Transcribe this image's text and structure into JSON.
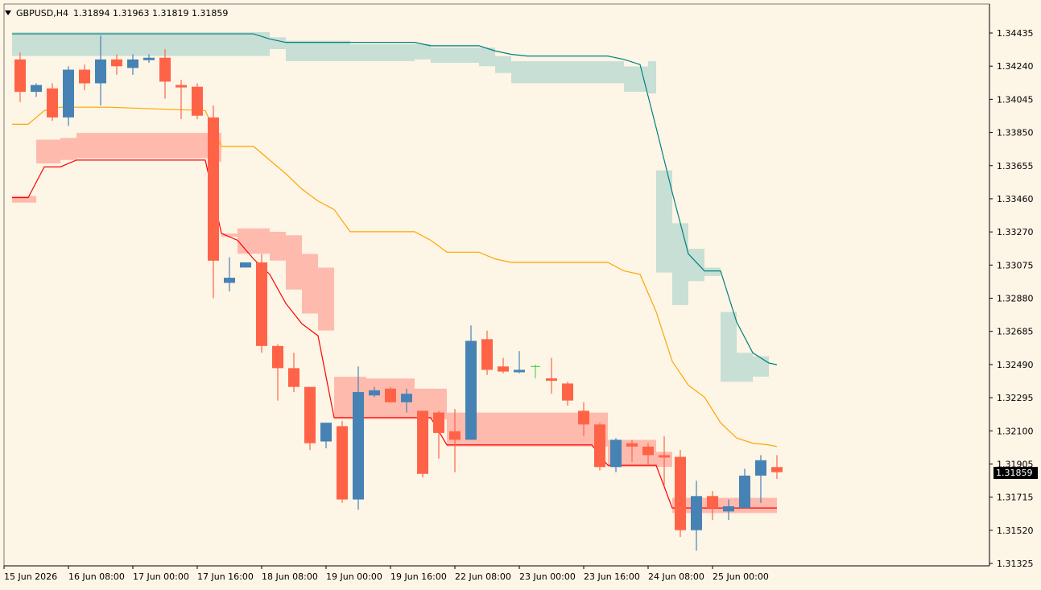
{
  "header": {
    "symbol": "GBPUSD,H4",
    "ohlc": "1.31894 1.31963 1.31819 1.31859"
  },
  "current_price_label": "1.31859",
  "colors": {
    "background": "#fdf5e6",
    "bull": "#4682b4",
    "bear": "#ff6347",
    "upper_cloud": "#c4ddd3",
    "lower_cloud": "#ffb6ab",
    "upper_line": "#008080",
    "lower_line": "#ff0000",
    "mid_line": "#ffa500"
  },
  "chart_data": {
    "type": "candlestick",
    "y_ticks": [
      "1.34435",
      "1.34240",
      "1.34045",
      "1.33850",
      "1.33655",
      "1.33460",
      "1.33270",
      "1.33075",
      "1.32880",
      "1.32685",
      "1.32490",
      "1.32295",
      "1.32100",
      "1.31905",
      "1.31715",
      "1.31520",
      "1.31325"
    ],
    "x_ticks": [
      "15 Jun 2026",
      "16 Jun 08:00",
      "17 Jun 00:00",
      "17 Jun 16:00",
      "18 Jun 08:00",
      "19 Jun 00:00",
      "19 Jun 16:00",
      "22 Jun 08:00",
      "23 Jun 00:00",
      "23 Jun 16:00",
      "24 Jun 08:00",
      "25 Jun 00:00"
    ],
    "ylim": [
      1.3128,
      1.3459
    ],
    "candles": [
      [
        1.3428,
        1.3432,
        1.3403,
        1.3409
      ],
      [
        1.3409,
        1.3414,
        1.3406,
        1.3413
      ],
      [
        1.3411,
        1.3414,
        1.3392,
        1.3394
      ],
      [
        1.3394,
        1.3424,
        1.3389,
        1.3422
      ],
      [
        1.3422,
        1.3425,
        1.341,
        1.3414
      ],
      [
        1.3414,
        1.3442,
        1.3401,
        1.3428
      ],
      [
        1.3428,
        1.3431,
        1.3419,
        1.3424
      ],
      [
        1.3423,
        1.3431,
        1.3419,
        1.3428
      ],
      [
        1.3428,
        1.3431,
        1.3426,
        1.3429
      ],
      [
        1.3429,
        1.3434,
        1.3405,
        1.3415
      ],
      [
        1.3413,
        1.3416,
        1.3393,
        1.3412
      ],
      [
        1.3412,
        1.3414,
        1.3393,
        1.3395
      ],
      [
        1.3394,
        1.3401,
        1.3288,
        1.331
      ],
      [
        1.3297,
        1.3312,
        1.3292,
        1.33
      ],
      [
        1.3306,
        1.3308,
        1.3306,
        1.3309
      ],
      [
        1.3309,
        1.3314,
        1.3256,
        1.326
      ],
      [
        1.326,
        1.3261,
        1.3228,
        1.3247
      ],
      [
        1.3247,
        1.3256,
        1.3233,
        1.3236
      ],
      [
        1.3236,
        1.3234,
        1.3199,
        1.3203
      ],
      [
        1.3204,
        1.3214,
        1.32,
        1.3215
      ],
      [
        1.3213,
        1.3216,
        1.3168,
        1.317
      ],
      [
        1.317,
        1.3248,
        1.3164,
        1.3233
      ],
      [
        1.3231,
        1.3236,
        1.323,
        1.3234
      ],
      [
        1.3235,
        1.3236,
        1.3227,
        1.3227
      ],
      [
        1.3227,
        1.3235,
        1.3221,
        1.3232
      ],
      [
        1.3222,
        1.3222,
        1.3183,
        1.3185
      ],
      [
        1.3221,
        1.3222,
        1.3194,
        1.3209
      ],
      [
        1.321,
        1.3223,
        1.3186,
        1.3205
      ],
      [
        1.3205,
        1.3272,
        1.3205,
        1.3263
      ],
      [
        1.3264,
        1.3269,
        1.3243,
        1.3246
      ],
      [
        1.3248,
        1.3253,
        1.3244,
        1.3245
      ],
      [
        1.3245,
        1.3257,
        1.3244,
        1.3246
      ],
      [
        1.3248,
        1.3249,
        1.3241,
        1.3242
      ],
      [
        1.3241,
        1.3253,
        1.3232,
        1.324
      ],
      [
        1.3238,
        1.3239,
        1.3225,
        1.3228
      ],
      [
        1.3222,
        1.3227,
        1.3207,
        1.3214
      ],
      [
        1.3214,
        1.3215,
        1.3187,
        1.3189
      ],
      [
        1.3189,
        1.3206,
        1.3186,
        1.3205
      ],
      [
        1.3203,
        1.3205,
        1.3192,
        1.3201
      ],
      [
        1.3201,
        1.3203,
        1.319,
        1.3196
      ],
      [
        1.3196,
        1.3207,
        1.3178,
        1.3195
      ],
      [
        1.3195,
        1.3199,
        1.3148,
        1.3152
      ],
      [
        1.3152,
        1.3181,
        1.314,
        1.3172
      ],
      [
        1.3172,
        1.3175,
        1.3158,
        1.3165
      ],
      [
        1.3163,
        1.317,
        1.3158,
        1.3166
      ],
      [
        1.3165,
        1.3188,
        1.3165,
        1.3184
      ],
      [
        1.3184,
        1.3196,
        1.3168,
        1.3193
      ],
      [
        1.3189,
        1.3196,
        1.3182,
        1.3186
      ]
    ],
    "upper_line_points": [
      [
        0,
        1.3443
      ],
      [
        15,
        1.3443
      ],
      [
        16,
        1.344
      ],
      [
        17,
        1.3438
      ],
      [
        25,
        1.3438
      ],
      [
        26,
        1.3436
      ],
      [
        29,
        1.3436
      ],
      [
        30,
        1.3433
      ],
      [
        31,
        1.3431
      ],
      [
        32,
        1.343
      ],
      [
        37,
        1.343
      ],
      [
        38,
        1.3428
      ],
      [
        39,
        1.3425
      ],
      [
        40,
        1.3388
      ],
      [
        41,
        1.335
      ],
      [
        42,
        1.3314
      ],
      [
        43,
        1.3304
      ],
      [
        44,
        1.3304
      ],
      [
        45,
        1.3274
      ],
      [
        46,
        1.3256
      ],
      [
        47,
        1.325
      ],
      [
        47.5,
        1.3249
      ]
    ],
    "upper_cloud": [
      [
        0,
        1.3443,
        1.3431
      ],
      [
        12,
        1.3443,
        1.3431
      ],
      [
        16,
        1.344,
        1.3435
      ],
      [
        17,
        1.3438,
        1.3428
      ],
      [
        21,
        1.3436,
        1.3428
      ],
      [
        25,
        1.3436,
        1.3429
      ],
      [
        26,
        1.3434,
        1.3427
      ],
      [
        29,
        1.3434,
        1.3425
      ],
      [
        30,
        1.3429,
        1.3421
      ],
      [
        31,
        1.3426,
        1.3415
      ],
      [
        38,
        1.3423,
        1.341
      ],
      [
        39.5,
        1.3426,
        1.3409
      ],
      [
        40,
        1.3362,
        1.3304
      ],
      [
        41,
        1.3331,
        1.3285
      ],
      [
        42,
        1.3316,
        1.3299
      ],
      [
        43,
        1.3305,
        1.3302
      ],
      [
        44,
        1.3304,
        1.3304
      ],
      [
        44,
        1.3279,
        1.324
      ],
      [
        45,
        1.3255,
        1.324
      ],
      [
        46,
        1.3253,
        1.3243
      ],
      [
        47,
        1.3252,
        1.3241
      ]
    ],
    "lower_line_points": [
      [
        0,
        1.3347
      ],
      [
        1,
        1.3347
      ],
      [
        2,
        1.3365
      ],
      [
        3,
        1.3365
      ],
      [
        4,
        1.3369
      ],
      [
        12,
        1.3369
      ],
      [
        13,
        1.3326
      ],
      [
        14,
        1.3322
      ],
      [
        15,
        1.3311
      ],
      [
        16,
        1.3302
      ],
      [
        17,
        1.3285
      ],
      [
        18,
        1.3273
      ],
      [
        19,
        1.3266
      ],
      [
        20,
        1.3218
      ],
      [
        22,
        1.3218
      ],
      [
        26,
        1.3218
      ],
      [
        27,
        1.3202
      ],
      [
        36,
        1.3202
      ],
      [
        37,
        1.319
      ],
      [
        40,
        1.319
      ],
      [
        41,
        1.3165
      ],
      [
        47.5,
        1.3165
      ]
    ],
    "lower_cloud": [
      [
        0,
        1.3347,
        1.3345
      ],
      [
        1.5,
        1.3368,
        1.338
      ],
      [
        3,
        1.337,
        1.3381
      ],
      [
        4,
        1.3371,
        1.3384
      ],
      [
        12.5,
        1.3369,
        1.3384
      ],
      [
        13,
        1.3325,
        1.3325
      ],
      [
        14,
        1.3315,
        1.3328
      ],
      [
        16,
        1.3311,
        1.3326
      ],
      [
        17,
        1.3294,
        1.3324
      ],
      [
        18,
        1.328,
        1.3313
      ],
      [
        19,
        1.327,
        1.3305
      ],
      [
        20,
        1.3218,
        1.3241
      ],
      [
        22,
        1.3218,
        1.324
      ],
      [
        25,
        1.3218,
        1.3234
      ],
      [
        27,
        1.3202,
        1.322
      ],
      [
        36,
        1.3202,
        1.322
      ],
      [
        37,
        1.319,
        1.3204
      ],
      [
        40,
        1.319,
        1.3197
      ],
      [
        41,
        1.3163,
        1.317
      ],
      [
        47.5,
        1.3163,
        1.3172
      ]
    ],
    "mid_line_points": [
      [
        0,
        1.339
      ],
      [
        1,
        1.339
      ],
      [
        2,
        1.3398
      ],
      [
        3,
        1.34
      ],
      [
        6,
        1.34
      ],
      [
        12,
        1.3398
      ],
      [
        13,
        1.3377
      ],
      [
        15,
        1.3377
      ],
      [
        16,
        1.3369
      ],
      [
        17,
        1.3361
      ],
      [
        18,
        1.3352
      ],
      [
        19,
        1.3345
      ],
      [
        20,
        1.334
      ],
      [
        21,
        1.3327
      ],
      [
        25,
        1.3327
      ],
      [
        26,
        1.3322
      ],
      [
        27,
        1.3315
      ],
      [
        29,
        1.3315
      ],
      [
        30,
        1.3311
      ],
      [
        31,
        1.3309
      ],
      [
        36,
        1.3309
      ],
      [
        37,
        1.3309
      ],
      [
        38,
        1.3304
      ],
      [
        39,
        1.3302
      ],
      [
        40,
        1.328
      ],
      [
        41,
        1.3251
      ],
      [
        42,
        1.3237
      ],
      [
        43,
        1.323
      ],
      [
        44,
        1.3215
      ],
      [
        45,
        1.3206
      ],
      [
        46,
        1.3203
      ],
      [
        47,
        1.3202
      ],
      [
        47.5,
        1.3201
      ]
    ],
    "marker_index": 32
  }
}
